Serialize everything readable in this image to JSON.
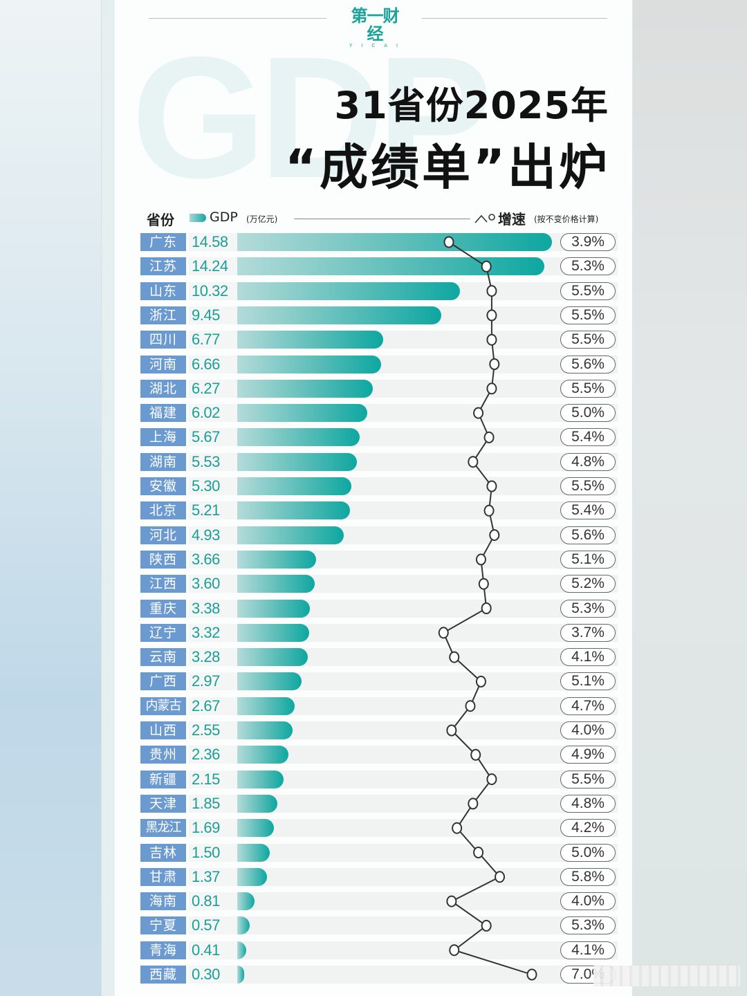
{
  "header": {
    "logo_text": "第一财经",
    "logo_sub": "YICAI",
    "watermark": "GDP",
    "title_line1": "31省份2025年",
    "title_line2": "“成绩单”出炉"
  },
  "legend": {
    "province_label": "省份",
    "gdp_label": "GDP",
    "gdp_unit": "(万亿元)",
    "growth_label": "增速",
    "growth_note": "(按不变价格计算)"
  },
  "colors": {
    "label_bg": "#6a9ad0",
    "value_text": "#1a9f97",
    "bar_start": "#b4dbd9",
    "bar_end": "#0ea7a1",
    "growth_line": "#333333"
  },
  "chart_data": {
    "type": "bar",
    "title": "31省份2025年“成绩单”出炉",
    "xlabel": "GDP (万亿元)",
    "ylabel": "省份",
    "categories": [
      "广东",
      "江苏",
      "山东",
      "浙江",
      "四川",
      "河南",
      "湖北",
      "福建",
      "上海",
      "湖南",
      "安徽",
      "北京",
      "河北",
      "陕西",
      "江西",
      "重庆",
      "辽宁",
      "云南",
      "广西",
      "内蒙古",
      "山西",
      "贵州",
      "新疆",
      "天津",
      "黑龙江",
      "吉林",
      "甘肃",
      "海南",
      "宁夏",
      "青海",
      "西藏"
    ],
    "series": [
      {
        "name": "GDP (万亿元)",
        "type": "bar",
        "values": [
          14.58,
          14.24,
          10.32,
          9.45,
          6.77,
          6.66,
          6.27,
          6.02,
          5.67,
          5.53,
          5.3,
          5.21,
          4.93,
          3.66,
          3.6,
          3.38,
          3.32,
          3.28,
          2.97,
          2.67,
          2.55,
          2.36,
          2.15,
          1.85,
          1.69,
          1.5,
          1.37,
          0.81,
          0.57,
          0.41,
          0.3
        ]
      },
      {
        "name": "增速 (按不变价格计算, %)",
        "type": "line",
        "values": [
          3.9,
          5.3,
          5.5,
          5.5,
          5.5,
          5.6,
          5.5,
          5.0,
          5.4,
          4.8,
          5.5,
          5.4,
          5.6,
          5.1,
          5.2,
          5.3,
          3.7,
          4.1,
          5.1,
          4.7,
          4.0,
          4.9,
          5.5,
          4.8,
          4.2,
          5.0,
          5.8,
          4.0,
          5.3,
          4.1,
          7.0
        ]
      }
    ],
    "value_labels": [
      "14.58",
      "14.24",
      "10.32",
      "9.45",
      "6.77",
      "6.66",
      "6.27",
      "6.02",
      "5.67",
      "5.53",
      "5.30",
      "5.21",
      "4.93",
      "3.66",
      "3.60",
      "3.38",
      "3.32",
      "3.28",
      "2.97",
      "2.67",
      "2.55",
      "2.36",
      "2.15",
      "1.85",
      "1.69",
      "1.50",
      "1.37",
      "0.81",
      "0.57",
      "0.41",
      "0.30"
    ],
    "growth_labels": [
      "3.9%",
      "5.3%",
      "5.5%",
      "5.5%",
      "5.5%",
      "5.6%",
      "5.5%",
      "5.0%",
      "5.4%",
      "4.8%",
      "5.5%",
      "5.4%",
      "5.6%",
      "5.1%",
      "5.2%",
      "5.3%",
      "3.7%",
      "4.1%",
      "5.1%",
      "4.7%",
      "4.0%",
      "4.9%",
      "5.5%",
      "4.8%",
      "4.2%",
      "5.0%",
      "5.8%",
      "4.0%",
      "5.3%",
      "4.1%",
      "7.0%"
    ],
    "legend_position": "top",
    "grid": false
  }
}
